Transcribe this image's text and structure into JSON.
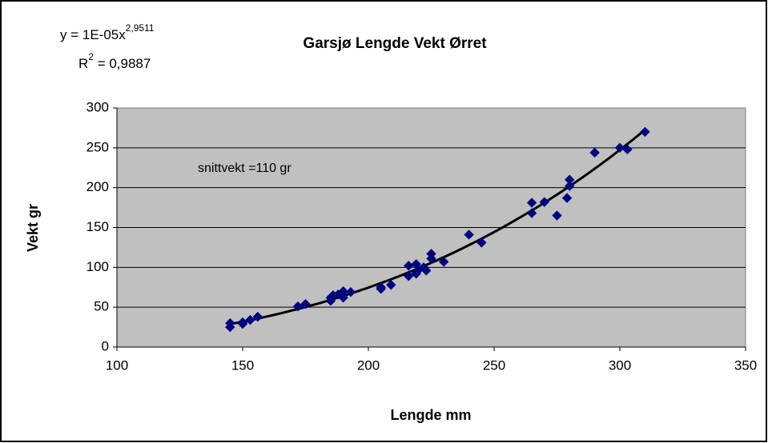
{
  "chart_data": {
    "type": "scatter",
    "title": "Garsjø Lengde Vekt  Ørret",
    "equation": {
      "text": "y = 1E-05x",
      "sup": "2,9511"
    },
    "r_squared": {
      "text": "R",
      "sup": "2",
      "rest": " = 0,9887"
    },
    "annotation": "snittvekt =110 gr",
    "xlabel": "Lengde mm",
    "ylabel": "Vekt gr",
    "color": "#000080",
    "trendline": "power",
    "grid": true,
    "xlim": [
      100,
      350
    ],
    "ylim": [
      0,
      300
    ],
    "xticks": [
      100,
      150,
      200,
      250,
      300,
      350
    ],
    "yticks": [
      0,
      50,
      100,
      150,
      200,
      250,
      300
    ],
    "x": [
      145,
      145,
      150,
      150,
      153,
      156,
      172,
      175,
      185,
      185,
      186,
      188,
      190,
      190,
      193,
      205,
      205,
      209,
      216,
      216,
      219,
      219,
      220,
      222,
      223,
      225,
      225,
      230,
      240,
      245,
      265,
      265,
      270,
      275,
      279,
      280,
      280,
      290,
      300,
      303,
      310
    ],
    "values": [
      30,
      25,
      29,
      31,
      34,
      38,
      51,
      54,
      58,
      62,
      65,
      66,
      62,
      70,
      69,
      73,
      75,
      78,
      89,
      102,
      92,
      104,
      97,
      100,
      96,
      111,
      117,
      107,
      141,
      131,
      168,
      181,
      182,
      165,
      187,
      202,
      210,
      244,
      250,
      248,
      270
    ]
  }
}
